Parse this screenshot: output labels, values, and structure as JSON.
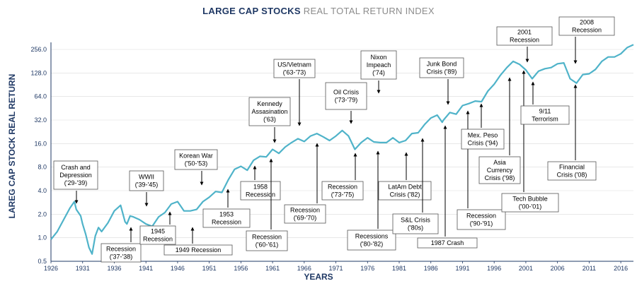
{
  "title_main": "LARGE CAP STOCKS",
  "title_sub": "REAL TOTAL RETURN INDEX",
  "colors": {
    "line": "#4fb3c9",
    "axis": "#1f3864",
    "grid": "#d9d9d9"
  },
  "chart_data": {
    "type": "line",
    "title": "LARGE CAP STOCKS REAL TOTAL RETURN INDEX",
    "xlabel": "YEARS",
    "ylabel": "LAREG CAP STOCK REAL RETURN",
    "y_scale": "log2",
    "xlim": [
      1926,
      2018
    ],
    "ylim": [
      0.5,
      256.0
    ],
    "x_ticks": [
      "1926",
      "1931",
      "1936",
      "1941",
      "1946",
      "1951",
      "1956",
      "1961",
      "1966",
      "1971",
      "1976",
      "1981",
      "1986",
      "1991",
      "1996",
      "2001",
      "2006",
      "2011",
      "2016"
    ],
    "y_ticks": [
      "0.5",
      "1.0",
      "2.0",
      "4.0",
      "8.0",
      "16.0",
      "32.0",
      "64.0",
      "128.0",
      "256.0"
    ],
    "grid": true,
    "series": [
      {
        "points": [
          [
            1926,
            0.95
          ],
          [
            1927,
            1.2
          ],
          [
            1928,
            1.7
          ],
          [
            1929,
            2.4
          ],
          [
            1929.7,
            2.9
          ],
          [
            1930,
            2.3
          ],
          [
            1930.7,
            1.9
          ],
          [
            1931,
            1.5
          ],
          [
            1931.5,
            1.1
          ],
          [
            1932,
            0.75
          ],
          [
            1932.5,
            0.62
          ],
          [
            1933,
            1.05
          ],
          [
            1933.5,
            1.35
          ],
          [
            1934,
            1.2
          ],
          [
            1935,
            1.55
          ],
          [
            1936,
            2.2
          ],
          [
            1937,
            2.6
          ],
          [
            1937.7,
            1.6
          ],
          [
            1938,
            1.5
          ],
          [
            1938.5,
            1.9
          ],
          [
            1939,
            1.85
          ],
          [
            1940,
            1.7
          ],
          [
            1941,
            1.5
          ],
          [
            1942,
            1.4
          ],
          [
            1943,
            1.85
          ],
          [
            1944,
            2.1
          ],
          [
            1945,
            2.7
          ],
          [
            1946,
            2.9
          ],
          [
            1946.7,
            2.4
          ],
          [
            1947,
            2.2
          ],
          [
            1948,
            2.2
          ],
          [
            1949,
            2.3
          ],
          [
            1950,
            2.9
          ],
          [
            1951,
            3.3
          ],
          [
            1952,
            3.9
          ],
          [
            1953,
            3.8
          ],
          [
            1954,
            5.5
          ],
          [
            1955,
            7.5
          ],
          [
            1956,
            8.2
          ],
          [
            1957,
            7.3
          ],
          [
            1958,
            9.8
          ],
          [
            1959,
            11
          ],
          [
            1960,
            10.8
          ],
          [
            1961,
            13.5
          ],
          [
            1962,
            12
          ],
          [
            1963,
            14.5
          ],
          [
            1964,
            16.5
          ],
          [
            1965,
            18.5
          ],
          [
            1966,
            17
          ],
          [
            1967,
            20
          ],
          [
            1968,
            21.5
          ],
          [
            1969,
            19.5
          ],
          [
            1970,
            17.5
          ],
          [
            1971,
            20
          ],
          [
            1972,
            23.5
          ],
          [
            1973,
            20
          ],
          [
            1974,
            13.5
          ],
          [
            1975,
            16.5
          ],
          [
            1976,
            19
          ],
          [
            1977,
            16.8
          ],
          [
            1978,
            16.5
          ],
          [
            1979,
            16.5
          ],
          [
            1980,
            19
          ],
          [
            1981,
            16.5
          ],
          [
            1982,
            17.5
          ],
          [
            1983,
            21.5
          ],
          [
            1984,
            22
          ],
          [
            1985,
            28
          ],
          [
            1986,
            34
          ],
          [
            1987,
            37
          ],
          [
            1987.8,
            30
          ],
          [
            1988,
            32
          ],
          [
            1989,
            40
          ],
          [
            1990,
            38
          ],
          [
            1991,
            49
          ],
          [
            1992,
            52
          ],
          [
            1993,
            56
          ],
          [
            1994,
            55
          ],
          [
            1995,
            75
          ],
          [
            1996,
            92
          ],
          [
            1997,
            120
          ],
          [
            1998,
            150
          ],
          [
            1999,
            180
          ],
          [
            2000,
            165
          ],
          [
            2001,
            140
          ],
          [
            2002,
            108
          ],
          [
            2003,
            135
          ],
          [
            2004,
            145
          ],
          [
            2005,
            150
          ],
          [
            2006,
            168
          ],
          [
            2007,
            172
          ],
          [
            2008,
            108
          ],
          [
            2009,
            95
          ],
          [
            2010,
            122
          ],
          [
            2011,
            125
          ],
          [
            2012,
            142
          ],
          [
            2013,
            180
          ],
          [
            2014,
            205
          ],
          [
            2015,
            205
          ],
          [
            2016,
            225
          ],
          [
            2017,
            270
          ],
          [
            2018,
            295
          ]
        ]
      }
    ]
  },
  "annotations": [
    {
      "id": "crash-1929",
      "lines": [
        "Crash and",
        "Depression",
        "('29-'39)"
      ]
    },
    {
      "id": "wwii",
      "lines": [
        "WWII",
        "('39-'45)"
      ]
    },
    {
      "id": "recession-1937",
      "lines": [
        "Recession",
        "('37-'38)"
      ]
    },
    {
      "id": "recession-1945",
      "lines": [
        "1945",
        "Recession"
      ]
    },
    {
      "id": "recession-1949",
      "lines": [
        "1949 Recession"
      ]
    },
    {
      "id": "korean-war",
      "lines": [
        "Korean War",
        "('50-'53)"
      ]
    },
    {
      "id": "recession-1953",
      "lines": [
        "1953",
        "Recession"
      ]
    },
    {
      "id": "recession-1958",
      "lines": [
        "1958",
        "Recession"
      ]
    },
    {
      "id": "recession-1960",
      "lines": [
        "Recession",
        "('60-'61)"
      ]
    },
    {
      "id": "kennedy",
      "lines": [
        "Kennedy",
        "Assasination",
        "('63)"
      ]
    },
    {
      "id": "vietnam",
      "lines": [
        "US/Vietnam",
        "('63-'73)"
      ]
    },
    {
      "id": "recession-1969",
      "lines": [
        "Recession",
        "('69-'70)"
      ]
    },
    {
      "id": "nixon",
      "lines": [
        "Nixon",
        "Impeach",
        "('74)"
      ]
    },
    {
      "id": "oil-crisis",
      "lines": [
        "Oil Crisis",
        "('73-'79)"
      ]
    },
    {
      "id": "recession-1973",
      "lines": [
        "Recession",
        "('73-'75)"
      ]
    },
    {
      "id": "recessions-1980",
      "lines": [
        "Recessions",
        "('80-'82)"
      ]
    },
    {
      "id": "latam",
      "lines": [
        "LatAm Debt",
        "Crisis ('82)"
      ]
    },
    {
      "id": "sl-crisis",
      "lines": [
        "S&L Crisis",
        "('80s)"
      ]
    },
    {
      "id": "crash-1987",
      "lines": [
        "1987 Crash"
      ]
    },
    {
      "id": "junk-bond",
      "lines": [
        "Junk Bond",
        "Crisis ('89)"
      ]
    },
    {
      "id": "recession-1990",
      "lines": [
        "Recession",
        "('90-'91)"
      ]
    },
    {
      "id": "mex-peso",
      "lines": [
        "Mex. Peso",
        "Crisis ('94)"
      ]
    },
    {
      "id": "asia",
      "lines": [
        "Asia",
        "Currency",
        "Crisis ('98)"
      ]
    },
    {
      "id": "tech-bubble",
      "lines": [
        "Tech Bubble",
        "('00-'01)"
      ]
    },
    {
      "id": "recession-2001",
      "lines": [
        "2001",
        "Recession"
      ]
    },
    {
      "id": "terrorism",
      "lines": [
        "9/11",
        "Terrorism"
      ]
    },
    {
      "id": "recession-2008",
      "lines": [
        "2008",
        "Recession"
      ]
    },
    {
      "id": "financial-crisis",
      "lines": [
        "Financial",
        "Crisis ('08)"
      ]
    }
  ]
}
